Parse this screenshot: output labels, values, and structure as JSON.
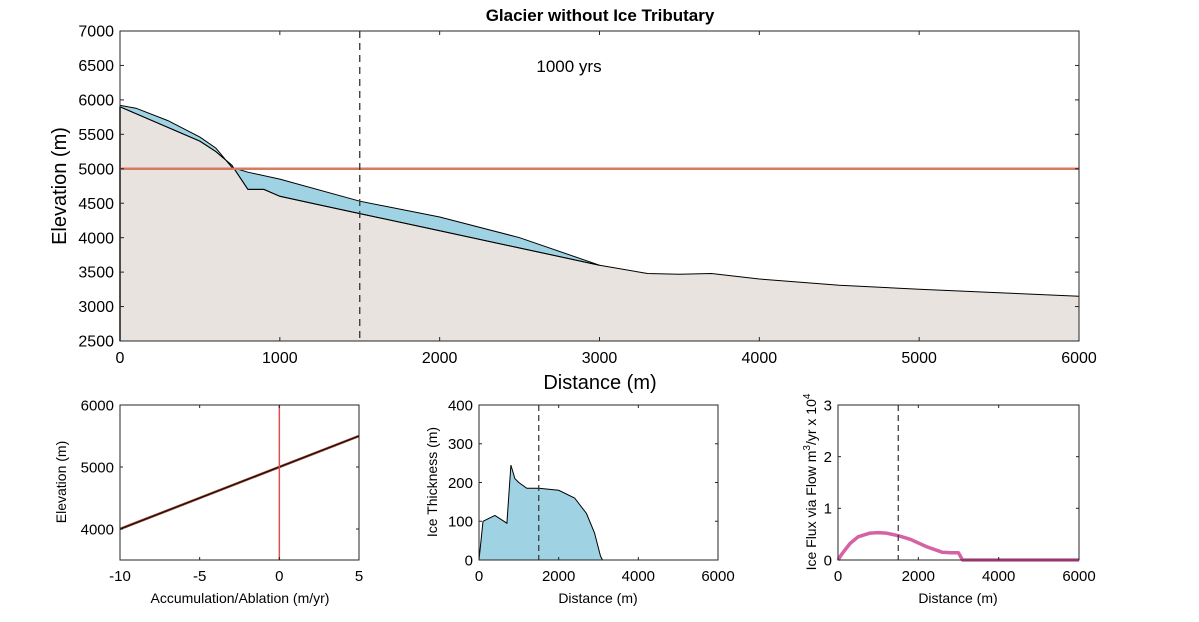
{
  "chart_data": [
    {
      "id": "main",
      "type": "area",
      "title": "Glacier without Ice Tributary",
      "xlabel": "Distance (m)",
      "ylabel": "Elevation (m)",
      "xlim": [
        0,
        6000
      ],
      "ylim": [
        2500,
        7000
      ],
      "xticks": [
        0,
        1000,
        2000,
        3000,
        4000,
        5000,
        6000
      ],
      "yticks": [
        2500,
        3000,
        3500,
        4000,
        4500,
        5000,
        5500,
        6000,
        6500,
        7000
      ],
      "annotation": "1000 yrs",
      "vline_x": 1500,
      "hline_y": 5000,
      "colors": {
        "bed": "#e8e3df",
        "ice": "#9fd3e3",
        "ela": "#d77a62",
        "vline": "#333333"
      },
      "series": [
        {
          "name": "bed",
          "x": [
            0,
            100,
            300,
            500,
            600,
            700,
            800,
            900,
            1000,
            1200,
            1500,
            2000,
            2500,
            3000,
            3300,
            3500,
            3700,
            4000,
            4500,
            5000,
            5500,
            6000
          ],
          "y": [
            5900,
            5800,
            5600,
            5400,
            5250,
            5050,
            4700,
            4700,
            4600,
            4500,
            4350,
            4100,
            3850,
            3600,
            3480,
            3470,
            3480,
            3400,
            3310,
            3250,
            3200,
            3150
          ]
        },
        {
          "name": "ice_surface",
          "x": [
            0,
            100,
            300,
            500,
            600,
            700,
            800,
            1000,
            1500,
            2000,
            2500,
            3000
          ],
          "y": [
            5920,
            5880,
            5700,
            5460,
            5300,
            5020,
            4950,
            4850,
            4530,
            4300,
            4000,
            3600
          ]
        }
      ]
    },
    {
      "id": "mb",
      "type": "line",
      "title": "",
      "xlabel": "Accumulation/Ablation (m/yr)",
      "ylabel": "Elevation (m)",
      "xlim": [
        -10,
        5
      ],
      "ylim": [
        3500,
        6000
      ],
      "xticks": [
        -10,
        -5,
        0,
        5
      ],
      "yticks": [
        4000,
        5000,
        6000
      ],
      "vline_x": 0,
      "colors": {
        "line": "#8b3a2a",
        "vline": "#d9534f"
      },
      "series": [
        {
          "name": "mass_balance",
          "x": [
            -10,
            5
          ],
          "y": [
            4000,
            5500
          ]
        }
      ]
    },
    {
      "id": "thick",
      "type": "area",
      "title": "",
      "xlabel": "Distance (m)",
      "ylabel": "Ice Thickness (m)",
      "xlim": [
        0,
        6000
      ],
      "ylim": [
        0,
        400
      ],
      "xticks": [
        0,
        2000,
        4000,
        6000
      ],
      "yticks": [
        0,
        100,
        200,
        300,
        400
      ],
      "vline_x": 1500,
      "colors": {
        "fill": "#9fd3e3",
        "vline": "#333333"
      },
      "series": [
        {
          "name": "thickness",
          "x": [
            0,
            100,
            200,
            400,
            700,
            800,
            900,
            1000,
            1200,
            1500,
            2000,
            2400,
            2700,
            2900,
            3050,
            3100,
            6000
          ],
          "y": [
            0,
            100,
            105,
            115,
            95,
            245,
            210,
            200,
            185,
            185,
            180,
            160,
            120,
            70,
            10,
            0,
            0
          ]
        }
      ]
    },
    {
      "id": "flux",
      "type": "line",
      "title": "",
      "xlabel": "Distance (m)",
      "ylabel_parts": [
        "Ice Flux via Flow m",
        "3",
        "/yr x 10",
        "4"
      ],
      "xlim": [
        0,
        6000
      ],
      "ylim": [
        0,
        3
      ],
      "xticks": [
        0,
        2000,
        4000,
        6000
      ],
      "yticks": [
        0,
        1,
        2,
        3
      ],
      "vline_x": 1500,
      "colors": {
        "line": "#d662a6",
        "vline": "#333333"
      },
      "series": [
        {
          "name": "flux",
          "x": [
            0,
            100,
            300,
            500,
            800,
            1000,
            1200,
            1500,
            1800,
            2200,
            2600,
            2800,
            3000,
            3100,
            6000
          ],
          "y": [
            0,
            0.12,
            0.32,
            0.45,
            0.52,
            0.53,
            0.52,
            0.47,
            0.4,
            0.26,
            0.15,
            0.14,
            0.14,
            0,
            0
          ]
        }
      ]
    }
  ]
}
